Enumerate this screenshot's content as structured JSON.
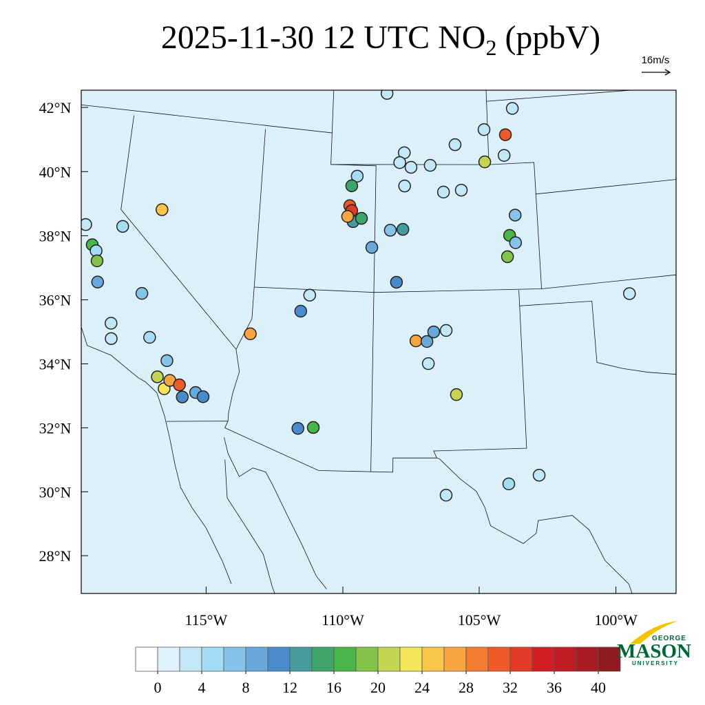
{
  "map": {
    "title": {
      "prefix": "2025-11-30 12 UTC NO",
      "subscript": "2",
      "suffix": " (ppbV)"
    },
    "wind_reference": "16m/s",
    "lat_ticks": [
      {
        "value": 42,
        "label": "42°N"
      },
      {
        "value": 40,
        "label": "40°N"
      },
      {
        "value": 38,
        "label": "38°N"
      },
      {
        "value": 36,
        "label": "36°N"
      },
      {
        "value": 34,
        "label": "34°N"
      },
      {
        "value": 32,
        "label": "32°N"
      },
      {
        "value": 30,
        "label": "30°N"
      },
      {
        "value": 28,
        "label": "28°N"
      }
    ],
    "lon_ticks": [
      {
        "value": -115,
        "label": "115°W"
      },
      {
        "value": -110,
        "label": "110°W"
      },
      {
        "value": -105,
        "label": "105°W"
      },
      {
        "value": -100,
        "label": "100°W"
      }
    ],
    "stations": {
      "lon": [
        -121.4,
        -121.0,
        -120.8,
        -120.7,
        -120.55,
        -119.83,
        -118.67,
        -119.77,
        -119.68,
        -118.14,
        -118.25,
        -117.34,
        -117.65,
        -117.33,
        -117.14,
        -116.74,
        -116.58,
        -116.07,
        -115.76,
        -114.07,
        -112.06,
        -111.72,
        -111.94,
        -111.34,
        -109.87,
        -110.1,
        -110.16,
        -110.07,
        -110.0,
        -109.64,
        -110.24,
        -109.17,
        -108.39,
        -108.11,
        -107.85,
        -108.6,
        -107.8,
        -108.0,
        -107.5,
        -106.65,
        -107.78,
        -105.53,
        -106.08,
        -105.3,
        -104.21,
        -102.89,
        -103.26,
        -103.36,
        -104.23,
        -103.0,
        -103.28,
        -103.04,
        -103.41,
        -98.42,
        -107.3,
        -106.85,
        -106.57,
        -106.06,
        -106.8,
        -105.69,
        -106.16,
        -103.75,
        -102.57
      ],
      "lat": [
        38.37,
        37.77,
        37.6,
        37.29,
        36.63,
        38.48,
        36.46,
        35.4,
        34.92,
        35.11,
        39.16,
        34.44,
        33.9,
        33.55,
        33.83,
        33.72,
        33.35,
        33.53,
        33.42,
        35.52,
        36.33,
        36.85,
        32.63,
        32.68,
        40.66,
        40.35,
        39.72,
        39.57,
        39.22,
        39.33,
        39.38,
        38.42,
        38.97,
        37.33,
        39.0,
        43.29,
        41.42,
        41.11,
        40.96,
        41.02,
        40.37,
        41.66,
        40.17,
        40.22,
        42.11,
        42.74,
        41.92,
        41.27,
        41.09,
        39.37,
        38.74,
        38.5,
        38.07,
        36.63,
        35.48,
        35.46,
        35.76,
        35.8,
        34.76,
        33.77,
        30.6,
        30.9,
        31.13
      ],
      "values": [
        2,
        17,
        4,
        18,
        8,
        4,
        6,
        2,
        2,
        4,
        24,
        6,
        20,
        22,
        26,
        30,
        10,
        8,
        10,
        26,
        10,
        2,
        10,
        16,
        4,
        14,
        30,
        32,
        12,
        14,
        26,
        8,
        6,
        10,
        12,
        2,
        2,
        2,
        2,
        2,
        2,
        2,
        2,
        2,
        2,
        2,
        30,
        2,
        20,
        6,
        16,
        6,
        18,
        2,
        26,
        8,
        8,
        2,
        2,
        20,
        2,
        4,
        2
      ]
    },
    "colorbar": {
      "lim": [
        -2,
        42
      ],
      "colors": [
        "#ffffff",
        "#dff2fb",
        "#c2e8f7",
        "#a3dcf4",
        "#85c4e8",
        "#68a8da",
        "#4a8ccb",
        "#479a9e",
        "#3fa46a",
        "#48b648",
        "#84c34a",
        "#c4d651",
        "#f6e65a",
        "#f9c64a",
        "#f8a440",
        "#f47c30",
        "#ef5a2a",
        "#e23a27",
        "#d31e26",
        "#bf1c24",
        "#a91c23",
        "#8e1a1f"
      ],
      "ticks": [
        0,
        4,
        8,
        12,
        16,
        20,
        24,
        28,
        32,
        36,
        40
      ]
    },
    "logo": {
      "top": "GEORGE",
      "main": "MASON",
      "bottom": "UNIVERSITY"
    }
  }
}
